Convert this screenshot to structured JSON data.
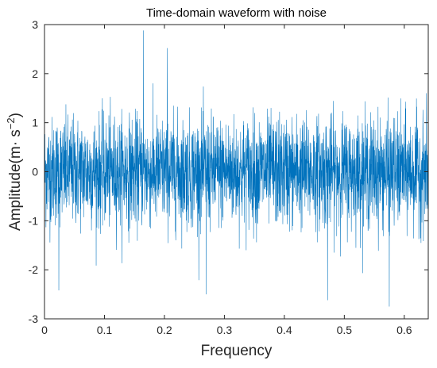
{
  "chart_data": {
    "type": "line",
    "title": "Time-domain waveform with noise",
    "xlabel": "Frequency",
    "ylabel_prefix": "Amplitude(m· s",
    "ylabel_exponent": "−2",
    "ylabel_suffix": ")",
    "xlim": [
      0,
      0.64
    ],
    "ylim": [
      -3,
      3
    ],
    "xticks": [
      0,
      0.1,
      0.2,
      0.3,
      0.4,
      0.5,
      0.6
    ],
    "xtick_labels": [
      "0",
      "0.1",
      "0.2",
      "0.3",
      "0.4",
      "0.5",
      "0.6"
    ],
    "yticks": [
      -3,
      -2,
      -1,
      0,
      1,
      2,
      3
    ],
    "ytick_labels": [
      "-3",
      "-2",
      "-1",
      "0",
      "1",
      "2",
      "3"
    ],
    "grid": false,
    "series": [
      {
        "color": "#0072bd",
        "description": "dense noisy waveform centered on 0, core band about ±0.9, spikes reaching about ±2.5",
        "peaks": [
          {
            "x": 0.165,
            "y": 2.88
          },
          {
            "x": 0.205,
            "y": 2.52
          },
          {
            "x": 0.575,
            "y": -2.75
          },
          {
            "x": 0.472,
            "y": -2.62
          },
          {
            "x": 0.27,
            "y": -2.5
          },
          {
            "x": 0.024,
            "y": -2.42
          }
        ]
      }
    ]
  }
}
